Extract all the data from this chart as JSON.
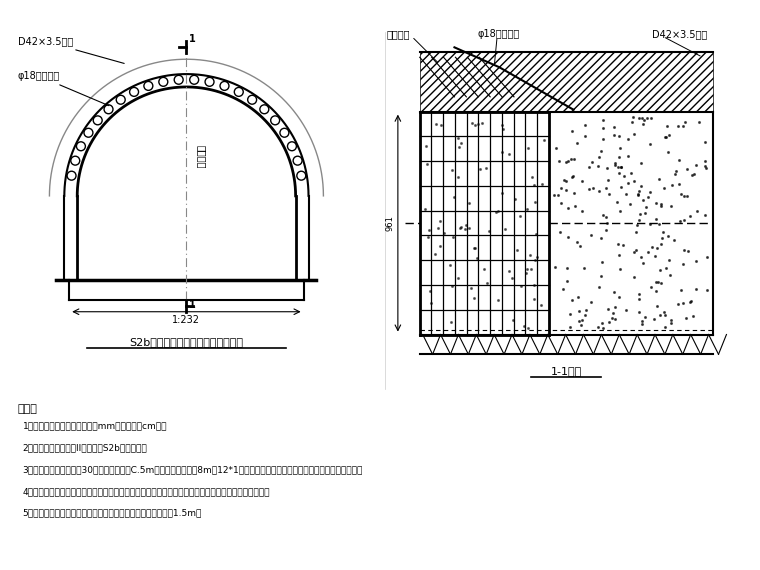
{
  "bg_color": "#ffffff",
  "title_left": "S2b型衬砂导管超前支护与鈢架立面",
  "title_right": "1-1剑面",
  "label_d42_left": "D42×3.5花管",
  "label_phi18_left": "φ18工字鈢架",
  "label_centerline": "隆道中线",
  "label_dimension": "1:232",
  "label_d42_right": "D42×3.5花管",
  "label_phi18_right": "φ18工字鈢架",
  "label_spray_right": "喷混凝二",
  "note_title": "说明：",
  "notes": [
    "1、本图尺寸单位除鈢筋直径以mm计外，均以cm计。",
    "2、本超前支护适用于II类围岩段S2b型初期段。",
    "3、超前小导管钒孔倾斜30度，头环间距约C.5m。鈢管有广采用长8m的12*1花管，注浆材料采用水泥浆或水泥、水玻璃双液浆。",
    "4、鈢架紧贴开挖面安装，安装完毕后立即喷射混凝土将其完全覆盖，覆盖后方可进行下一循环的开挖。",
    "5、隆道开挖时做到短进尺、弱爆破、勤测量，每次进尺控制为1.5m。"
  ]
}
